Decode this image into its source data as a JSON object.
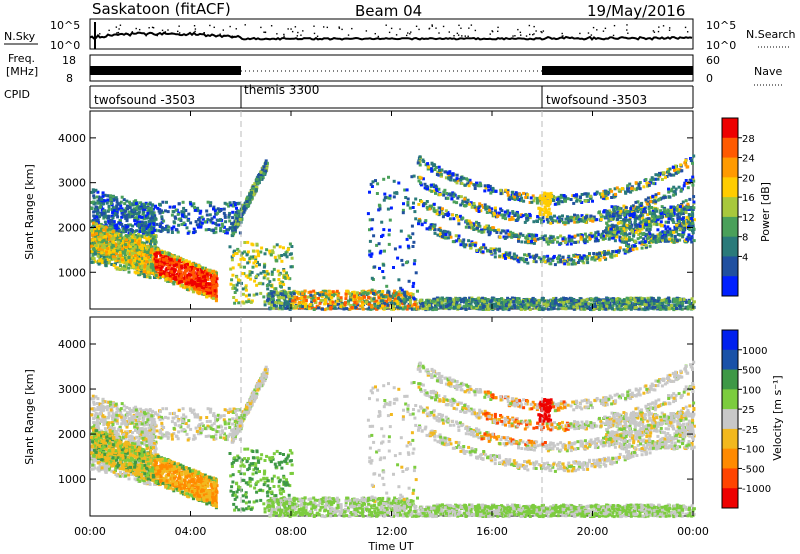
{
  "header": {
    "station": "Saskatoon (fitACF)",
    "beam": "Beam 04",
    "date": "19/May/2016"
  },
  "noise_panel": {
    "left_label": "N.Sky",
    "right_label": "N.Search",
    "left_ticks": [
      "10^5",
      "10^0"
    ],
    "right_ticks": [
      "10^5",
      "10^0"
    ]
  },
  "freq_panel": {
    "left_label_line1": "Freq.",
    "left_label_line2": "[MHz]",
    "right_label": "Nave",
    "left_ticks": [
      "18",
      "8"
    ],
    "right_ticks": [
      "60",
      "0"
    ]
  },
  "cpid": {
    "label": "CPID",
    "segments": [
      {
        "name": "twofsound -3503",
        "start_hour": 0
      },
      {
        "name": "themis 3300",
        "start_hour": 6
      },
      {
        "name": "twofsound -3503",
        "start_hour": 18
      }
    ]
  },
  "chart_data": [
    {
      "type": "heatmap",
      "title": "",
      "ylabel": "Slant Range [km]",
      "colorbar_label": "Power [dB]",
      "colorbar_ticks": [
        "28",
        "24",
        "20",
        "16",
        "12",
        "8",
        "4"
      ],
      "colorbar_colors": [
        "#ee0000",
        "#ff5a00",
        "#ff9a00",
        "#ffcc00",
        "#a8c83c",
        "#4aa05a",
        "#2a7a7a",
        "#2050a0",
        "#0020ff"
      ],
      "ylim": [
        180,
        4600
      ],
      "yticks": [
        1000,
        2000,
        3000,
        4000
      ],
      "xlim_hours": [
        0,
        24
      ],
      "mode_change_hours": [
        6,
        18
      ]
    },
    {
      "type": "heatmap",
      "title": "",
      "ylabel": "Slant Range [km]",
      "colorbar_label": "Velocity [m s⁻¹]",
      "colorbar_ticks": [
        "1000",
        "500",
        "100",
        "25",
        "-25",
        "-100",
        "-500",
        "-1000"
      ],
      "colorbar_colors": [
        "#0020ee",
        "#1a52a8",
        "#3e9846",
        "#7ccc3e",
        "#c8c8c8",
        "#f2b81e",
        "#ff8a00",
        "#ff4400",
        "#ee0000"
      ],
      "ylim": [
        180,
        4600
      ],
      "yticks": [
        1000,
        2000,
        3000,
        4000
      ],
      "xlim_hours": [
        0,
        24
      ],
      "mode_change_hours": [
        6,
        18
      ]
    }
  ],
  "x_axis": {
    "label": "Time UT",
    "ticks": [
      "00:00",
      "04:00",
      "08:00",
      "12:00",
      "16:00",
      "20:00",
      "00:00"
    ]
  }
}
